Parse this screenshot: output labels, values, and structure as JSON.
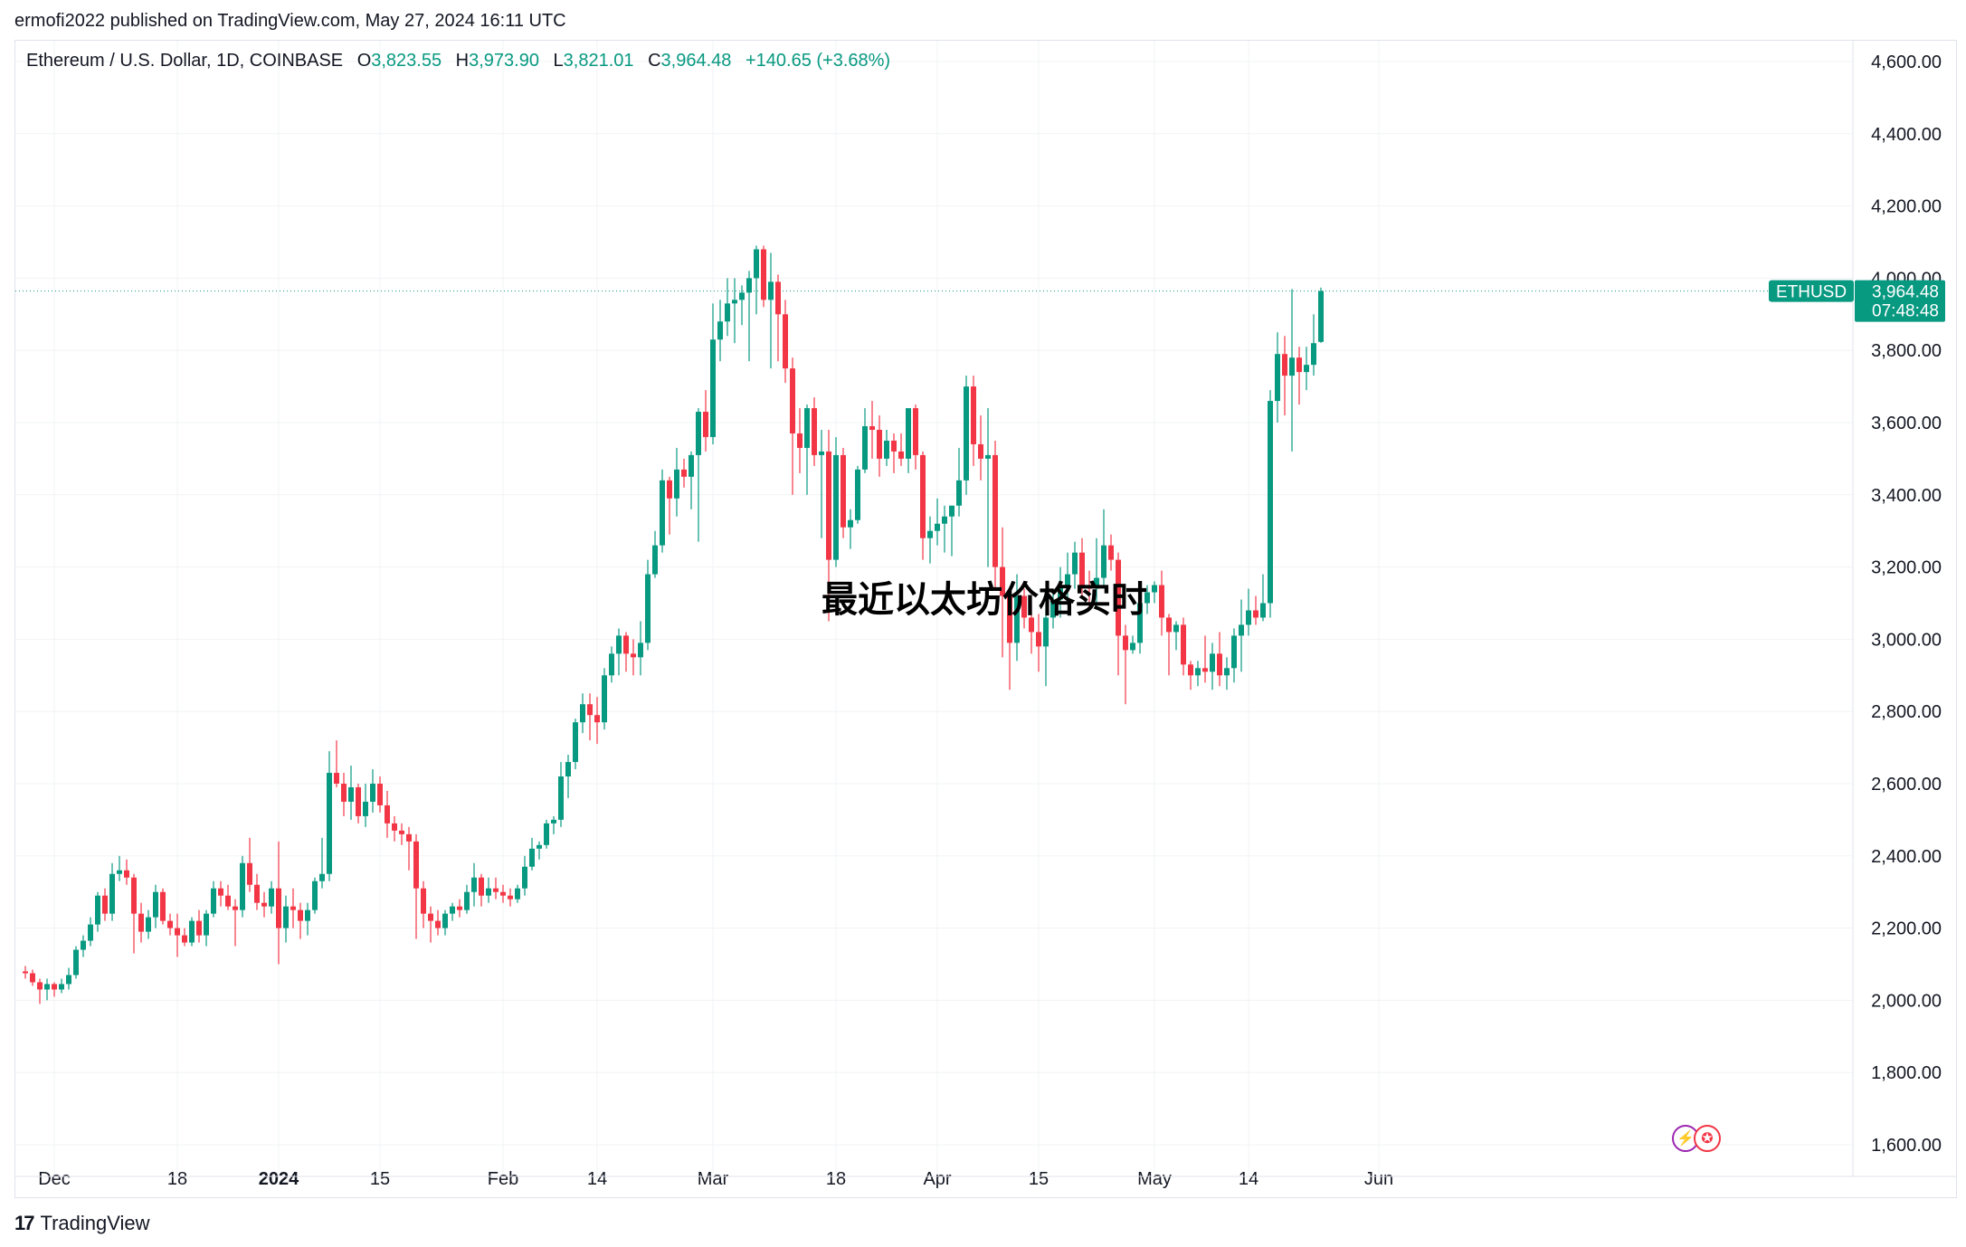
{
  "header": {
    "published": "ermofi2022 published on TradingView.com, May 27, 2024 16:11 UTC"
  },
  "legend": {
    "symbol": "Ethereum / U.S. Dollar, 1D, COINBASE",
    "o_label": "O",
    "o_value": "3,823.55",
    "h_label": "H",
    "h_value": "3,973.90",
    "l_label": "L",
    "l_value": "3,821.01",
    "c_label": "C",
    "c_value": "3,964.48",
    "change": "+140.65 (+3.68%)"
  },
  "price_tag": {
    "symbol": "ETHUSD",
    "price": "3,964.48",
    "countdown": "07:48:48"
  },
  "watermark": "最近以太坊价格实时",
  "footer": {
    "brand": "TradingView"
  },
  "icons": {
    "badge1": "lightning-icon",
    "badge2": "us-flag-icon"
  },
  "colors": {
    "up": "#089981",
    "down": "#f23645",
    "tag": "#089981"
  },
  "chart_data": {
    "type": "candlestick",
    "ylim": [
      1550,
      4650
    ],
    "y_ticks": [
      "1,600.00",
      "1,800.00",
      "2,000.00",
      "2,200.00",
      "2,400.00",
      "2,600.00",
      "2,800.00",
      "3,000.00",
      "3,200.00",
      "3,400.00",
      "3,600.00",
      "3,800.00",
      "4,000.00",
      "4,200.00",
      "4,400.00",
      "4,600.00"
    ],
    "y_tick_values": [
      1600,
      1800,
      2000,
      2200,
      2400,
      2600,
      2800,
      3000,
      3200,
      3400,
      3600,
      3800,
      4000,
      4200,
      4400,
      4600
    ],
    "x_labels": [
      {
        "label": "Dec",
        "index": 4
      },
      {
        "label": "18",
        "index": 21
      },
      {
        "label": "2024",
        "index": 35,
        "bold": true
      },
      {
        "label": "15",
        "index": 49
      },
      {
        "label": "Feb",
        "index": 66
      },
      {
        "label": "14",
        "index": 79
      },
      {
        "label": "Mar",
        "index": 95
      },
      {
        "label": "18",
        "index": 112
      },
      {
        "label": "Apr",
        "index": 126
      },
      {
        "label": "15",
        "index": 140
      },
      {
        "label": "May",
        "index": 156
      },
      {
        "label": "14",
        "index": 169
      },
      {
        "label": "Jun",
        "index": 187
      }
    ],
    "last_price": 3964.48,
    "candles": [
      [
        2080,
        2095,
        2060,
        2075
      ],
      [
        2075,
        2085,
        2040,
        2050
      ],
      [
        2050,
        2060,
        1990,
        2030
      ],
      [
        2030,
        2060,
        2000,
        2045
      ],
      [
        2045,
        2050,
        2010,
        2030
      ],
      [
        2030,
        2060,
        2020,
        2045
      ],
      [
        2045,
        2090,
        2030,
        2070
      ],
      [
        2070,
        2150,
        2060,
        2140
      ],
      [
        2140,
        2180,
        2120,
        2165
      ],
      [
        2165,
        2230,
        2150,
        2210
      ],
      [
        2210,
        2300,
        2190,
        2290
      ],
      [
        2290,
        2310,
        2220,
        2240
      ],
      [
        2240,
        2380,
        2220,
        2350
      ],
      [
        2350,
        2400,
        2330,
        2360
      ],
      [
        2360,
        2390,
        2320,
        2340
      ],
      [
        2340,
        2350,
        2130,
        2240
      ],
      [
        2240,
        2270,
        2160,
        2190
      ],
      [
        2190,
        2250,
        2170,
        2230
      ],
      [
        2230,
        2320,
        2200,
        2300
      ],
      [
        2300,
        2310,
        2210,
        2220
      ],
      [
        2220,
        2240,
        2180,
        2200
      ],
      [
        2200,
        2240,
        2120,
        2180
      ],
      [
        2180,
        2200,
        2150,
        2160
      ],
      [
        2160,
        2230,
        2150,
        2220
      ],
      [
        2220,
        2250,
        2160,
        2180
      ],
      [
        2180,
        2250,
        2150,
        2240
      ],
      [
        2240,
        2330,
        2230,
        2310
      ],
      [
        2310,
        2330,
        2260,
        2290
      ],
      [
        2290,
        2320,
        2250,
        2260
      ],
      [
        2260,
        2280,
        2150,
        2250
      ],
      [
        2250,
        2400,
        2230,
        2380
      ],
      [
        2380,
        2450,
        2300,
        2320
      ],
      [
        2320,
        2350,
        2250,
        2270
      ],
      [
        2270,
        2300,
        2230,
        2260
      ],
      [
        2260,
        2330,
        2240,
        2310
      ],
      [
        2310,
        2440,
        2100,
        2200
      ],
      [
        2200,
        2290,
        2160,
        2260
      ],
      [
        2260,
        2310,
        2200,
        2250
      ],
      [
        2250,
        2270,
        2170,
        2220
      ],
      [
        2220,
        2270,
        2180,
        2250
      ],
      [
        2250,
        2340,
        2240,
        2330
      ],
      [
        2330,
        2450,
        2310,
        2350
      ],
      [
        2350,
        2690,
        2330,
        2630
      ],
      [
        2630,
        2720,
        2590,
        2600
      ],
      [
        2600,
        2630,
        2510,
        2550
      ],
      [
        2550,
        2650,
        2500,
        2590
      ],
      [
        2590,
        2600,
        2490,
        2510
      ],
      [
        2510,
        2600,
        2480,
        2550
      ],
      [
        2550,
        2640,
        2520,
        2600
      ],
      [
        2600,
        2620,
        2520,
        2540
      ],
      [
        2540,
        2580,
        2450,
        2490
      ],
      [
        2490,
        2510,
        2440,
        2470
      ],
      [
        2470,
        2490,
        2430,
        2460
      ],
      [
        2460,
        2480,
        2360,
        2440
      ],
      [
        2440,
        2460,
        2170,
        2310
      ],
      [
        2310,
        2330,
        2200,
        2240
      ],
      [
        2240,
        2260,
        2160,
        2220
      ],
      [
        2220,
        2250,
        2180,
        2200
      ],
      [
        2200,
        2250,
        2180,
        2240
      ],
      [
        2240,
        2270,
        2220,
        2260
      ],
      [
        2260,
        2280,
        2230,
        2250
      ],
      [
        2250,
        2320,
        2240,
        2300
      ],
      [
        2300,
        2380,
        2260,
        2340
      ],
      [
        2340,
        2350,
        2260,
        2290
      ],
      [
        2290,
        2340,
        2270,
        2310
      ],
      [
        2310,
        2340,
        2280,
        2300
      ],
      [
        2300,
        2320,
        2270,
        2290
      ],
      [
        2290,
        2310,
        2260,
        2280
      ],
      [
        2280,
        2320,
        2270,
        2310
      ],
      [
        2310,
        2400,
        2290,
        2370
      ],
      [
        2370,
        2450,
        2360,
        2420
      ],
      [
        2420,
        2440,
        2390,
        2430
      ],
      [
        2430,
        2500,
        2420,
        2490
      ],
      [
        2490,
        2510,
        2460,
        2500
      ],
      [
        2500,
        2660,
        2480,
        2620
      ],
      [
        2620,
        2680,
        2560,
        2660
      ],
      [
        2660,
        2780,
        2640,
        2770
      ],
      [
        2770,
        2850,
        2740,
        2820
      ],
      [
        2820,
        2850,
        2720,
        2790
      ],
      [
        2790,
        2840,
        2710,
        2770
      ],
      [
        2770,
        2920,
        2750,
        2900
      ],
      [
        2900,
        2980,
        2880,
        2960
      ],
      [
        2960,
        3030,
        2900,
        3010
      ],
      [
        3010,
        3020,
        2910,
        2960
      ],
      [
        2960,
        3000,
        2900,
        2950
      ],
      [
        2950,
        3050,
        2900,
        2990
      ],
      [
        2990,
        3220,
        2970,
        3180
      ],
      [
        3180,
        3300,
        3170,
        3260
      ],
      [
        3260,
        3470,
        3240,
        3440
      ],
      [
        3440,
        3450,
        3290,
        3390
      ],
      [
        3390,
        3530,
        3340,
        3470
      ],
      [
        3470,
        3500,
        3420,
        3450
      ],
      [
        3450,
        3520,
        3360,
        3510
      ],
      [
        3510,
        3640,
        3270,
        3630
      ],
      [
        3630,
        3690,
        3520,
        3560
      ],
      [
        3560,
        3930,
        3540,
        3830
      ],
      [
        3830,
        3940,
        3770,
        3880
      ],
      [
        3880,
        4000,
        3840,
        3930
      ],
      [
        3930,
        4000,
        3820,
        3940
      ],
      [
        3940,
        3980,
        3870,
        3960
      ],
      [
        3960,
        4020,
        3770,
        4000
      ],
      [
        4000,
        4090,
        3900,
        4080
      ],
      [
        4080,
        4090,
        3920,
        3940
      ],
      [
        3940,
        4070,
        3750,
        3990
      ],
      [
        3990,
        4010,
        3770,
        3900
      ],
      [
        3900,
        3940,
        3710,
        3750
      ],
      [
        3750,
        3780,
        3400,
        3570
      ],
      [
        3570,
        3640,
        3460,
        3530
      ],
      [
        3530,
        3650,
        3400,
        3640
      ],
      [
        3640,
        3670,
        3480,
        3510
      ],
      [
        3510,
        3580,
        3280,
        3520
      ],
      [
        3520,
        3580,
        3050,
        3220
      ],
      [
        3220,
        3560,
        3200,
        3510
      ],
      [
        3510,
        3530,
        3280,
        3310
      ],
      [
        3310,
        3360,
        3250,
        3330
      ],
      [
        3330,
        3480,
        3320,
        3470
      ],
      [
        3470,
        3640,
        3460,
        3590
      ],
      [
        3590,
        3660,
        3500,
        3580
      ],
      [
        3580,
        3620,
        3450,
        3500
      ],
      [
        3500,
        3580,
        3480,
        3550
      ],
      [
        3550,
        3570,
        3460,
        3520
      ],
      [
        3520,
        3570,
        3480,
        3500
      ],
      [
        3500,
        3610,
        3460,
        3640
      ],
      [
        3640,
        3650,
        3470,
        3510
      ],
      [
        3510,
        3520,
        3220,
        3280
      ],
      [
        3280,
        3340,
        3210,
        3300
      ],
      [
        3300,
        3390,
        3260,
        3320
      ],
      [
        3320,
        3370,
        3240,
        3340
      ],
      [
        3340,
        3370,
        3230,
        3370
      ],
      [
        3370,
        3530,
        3340,
        3440
      ],
      [
        3440,
        3730,
        3400,
        3700
      ],
      [
        3700,
        3730,
        3480,
        3540
      ],
      [
        3540,
        3620,
        3440,
        3500
      ],
      [
        3500,
        3640,
        3200,
        3510
      ],
      [
        3510,
        3550,
        3140,
        3200
      ],
      [
        3200,
        3310,
        2950,
        3120
      ],
      [
        3120,
        3140,
        2860,
        2990
      ],
      [
        2990,
        3180,
        2940,
        3120
      ],
      [
        3120,
        3140,
        3030,
        3060
      ],
      [
        3060,
        3100,
        2960,
        3020
      ],
      [
        3020,
        3070,
        2910,
        2980
      ],
      [
        2980,
        3100,
        2870,
        3060
      ],
      [
        3060,
        3130,
        3030,
        3110
      ],
      [
        3110,
        3200,
        3060,
        3150
      ],
      [
        3150,
        3240,
        3100,
        3180
      ],
      [
        3180,
        3270,
        3140,
        3240
      ],
      [
        3240,
        3280,
        3120,
        3150
      ],
      [
        3150,
        3190,
        3090,
        3140
      ],
      [
        3140,
        3280,
        3090,
        3170
      ],
      [
        3170,
        3360,
        3150,
        3260
      ],
      [
        3260,
        3290,
        3190,
        3220
      ],
      [
        3220,
        3240,
        2900,
        3010
      ],
      [
        3010,
        3040,
        2820,
        2970
      ],
      [
        2970,
        3010,
        2960,
        2990
      ],
      [
        2990,
        3130,
        2960,
        3100
      ],
      [
        3100,
        3150,
        3070,
        3130
      ],
      [
        3130,
        3160,
        3100,
        3150
      ],
      [
        3150,
        3190,
        3010,
        3060
      ],
      [
        3060,
        3070,
        2900,
        3020
      ],
      [
        3020,
        3050,
        2970,
        3040
      ],
      [
        3040,
        3060,
        2900,
        2930
      ],
      [
        2930,
        2940,
        2860,
        2900
      ],
      [
        2900,
        2940,
        2870,
        2920
      ],
      [
        2920,
        3010,
        2880,
        2910
      ],
      [
        2910,
        2990,
        2860,
        2960
      ],
      [
        2960,
        3020,
        2870,
        2900
      ],
      [
        2900,
        2950,
        2860,
        2920
      ],
      [
        2920,
        3030,
        2880,
        3010
      ],
      [
        3010,
        3110,
        2910,
        3040
      ],
      [
        3040,
        3140,
        3010,
        3080
      ],
      [
        3080,
        3120,
        3040,
        3060
      ],
      [
        3060,
        3180,
        3050,
        3100
      ],
      [
        3100,
        3690,
        3060,
        3660
      ],
      [
        3660,
        3850,
        3600,
        3790
      ],
      [
        3790,
        3840,
        3620,
        3730
      ],
      [
        3730,
        3970,
        3520,
        3780
      ],
      [
        3780,
        3810,
        3650,
        3740
      ],
      [
        3740,
        3810,
        3690,
        3760
      ],
      [
        3760,
        3900,
        3730,
        3820
      ],
      [
        3823.55,
        3973.9,
        3821.01,
        3964.48
      ]
    ]
  }
}
